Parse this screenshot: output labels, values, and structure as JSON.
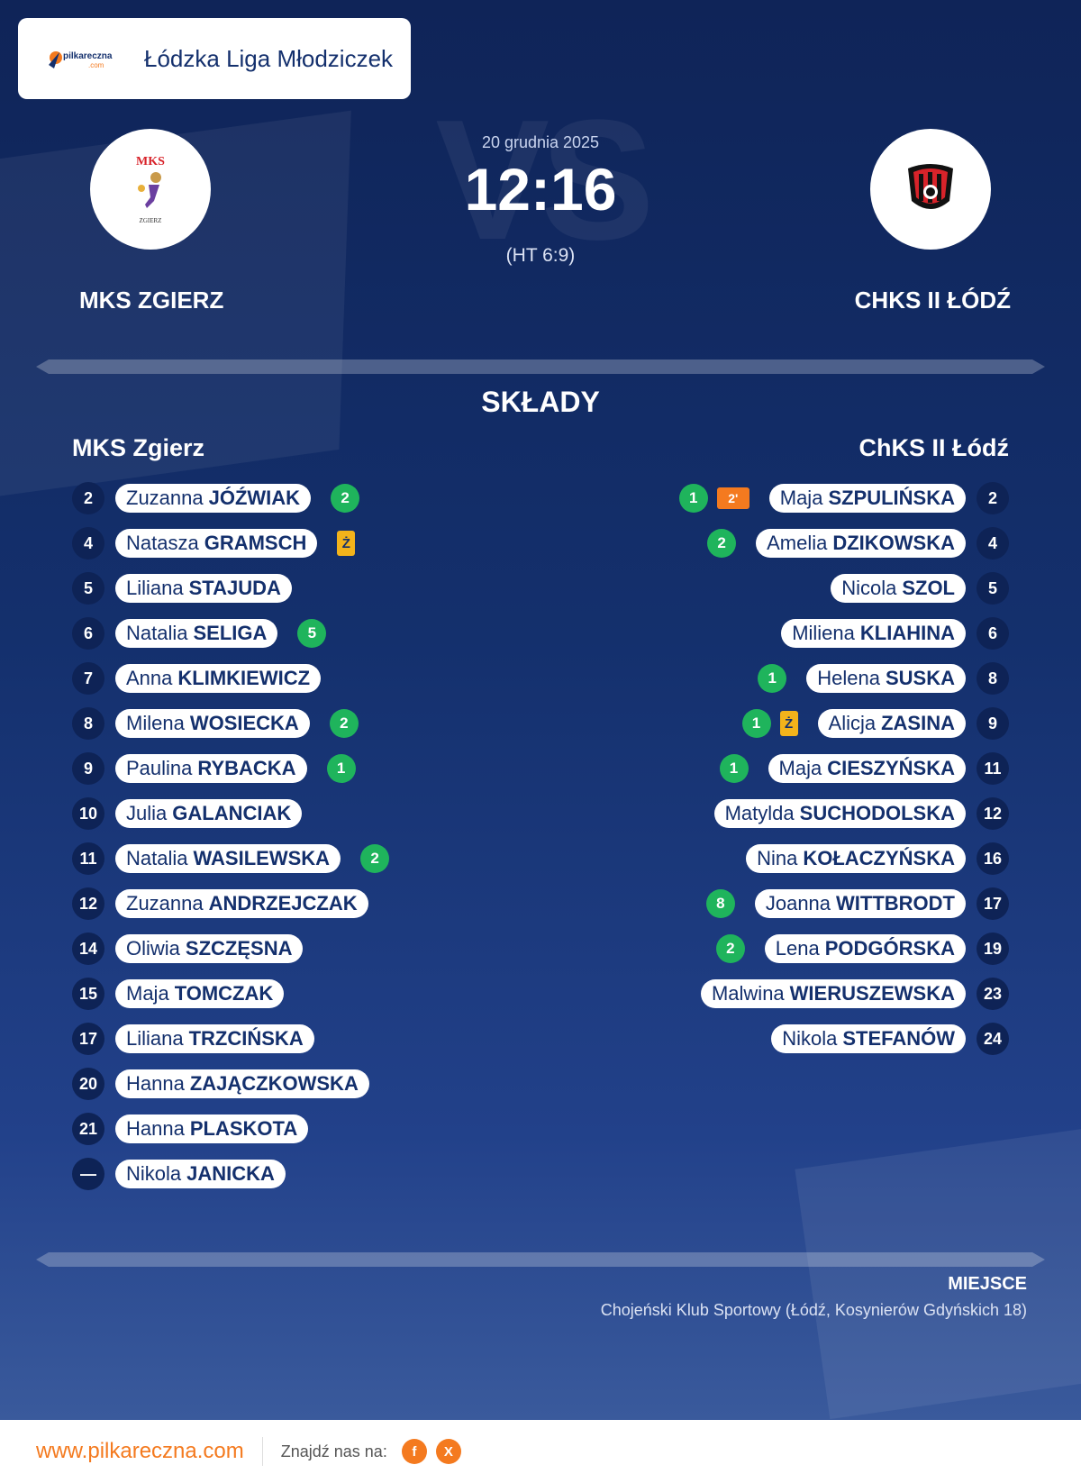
{
  "header": {
    "brand_name": "pilkareczna",
    "brand_sub": ".com",
    "league": "Łódzka Liga Młodziczek"
  },
  "match": {
    "date": "20 grudnia 2025",
    "score": "12:16",
    "halftime": "(HT 6:9)",
    "vs_watermark": "VS",
    "home": {
      "name": "MKS ZGIERZ",
      "logo_top": "MKS",
      "logo_bottom": "ZGIERZ"
    },
    "away": {
      "name": "CHKS II ŁÓDŹ"
    }
  },
  "lineups": {
    "title": "SKŁADY",
    "home_title": "MKS Zgierz",
    "away_title": "ChKS II Łódź",
    "home_players": [
      {
        "number": "2",
        "first": "Zuzanna",
        "last": "JÓŹWIAK",
        "goals": "2"
      },
      {
        "number": "4",
        "first": "Natasza",
        "last": "GRAMSCH",
        "card": "Ż"
      },
      {
        "number": "5",
        "first": "Liliana",
        "last": "STAJUDA"
      },
      {
        "number": "6",
        "first": "Natalia",
        "last": "SELIGA",
        "goals": "5"
      },
      {
        "number": "7",
        "first": "Anna",
        "last": "KLIMKIEWICZ"
      },
      {
        "number": "8",
        "first": "Milena",
        "last": "WOSIECKA",
        "goals": "2"
      },
      {
        "number": "9",
        "first": "Paulina",
        "last": "RYBACKA",
        "goals": "1"
      },
      {
        "number": "10",
        "first": "Julia",
        "last": "GALANCIAK"
      },
      {
        "number": "11",
        "first": "Natalia",
        "last": "WASILEWSKA",
        "goals": "2"
      },
      {
        "number": "12",
        "first": "Zuzanna",
        "last": "ANDRZEJCZAK"
      },
      {
        "number": "14",
        "first": "Oliwia",
        "last": "SZCZĘSNA"
      },
      {
        "number": "15",
        "first": "Maja",
        "last": "TOMCZAK"
      },
      {
        "number": "17",
        "first": "Liliana",
        "last": "TRZCIŃSKA"
      },
      {
        "number": "20",
        "first": "Hanna",
        "last": "ZAJĄCZKOWSKA"
      },
      {
        "number": "21",
        "first": "Hanna",
        "last": "PLASKOTA"
      },
      {
        "number": "—",
        "first": "Nikola",
        "last": "JANICKA"
      }
    ],
    "away_players": [
      {
        "number": "2",
        "first": "Maja",
        "last": "SZPULIŃSKA",
        "goals": "1",
        "suspension": "2'"
      },
      {
        "number": "4",
        "first": "Amelia",
        "last": "DZIKOWSKA",
        "goals": "2"
      },
      {
        "number": "5",
        "first": "Nicola",
        "last": "SZOL"
      },
      {
        "number": "6",
        "first": "Miliena",
        "last": "KLIAHINA"
      },
      {
        "number": "8",
        "first": "Helena",
        "last": "SUSKA",
        "goals": "1"
      },
      {
        "number": "9",
        "first": "Alicja",
        "last": "ZASINA",
        "goals": "1",
        "card": "Ż"
      },
      {
        "number": "11",
        "first": "Maja",
        "last": "CIESZYŃSKA",
        "goals": "1"
      },
      {
        "number": "12",
        "first": "Matylda",
        "last": "SUCHODOLSKA"
      },
      {
        "number": "16",
        "first": "Nina",
        "last": "KOŁACZYŃSKA"
      },
      {
        "number": "17",
        "first": "Joanna",
        "last": "WITTBRODT",
        "goals": "8"
      },
      {
        "number": "19",
        "first": "Lena",
        "last": "PODGÓRSKA",
        "goals": "2"
      },
      {
        "number": "23",
        "first": "Malwina",
        "last": "WIERUSZEWSKA"
      },
      {
        "number": "24",
        "first": "Nikola",
        "last": "STEFANÓW"
      }
    ]
  },
  "venue": {
    "label": "MIEJSCE",
    "text": "Chojeński Klub Sportowy (Łódź, Kosynierów Gdyńskich 18)"
  },
  "footer": {
    "site": "www.pilkareczna.com",
    "find_us": "Znajdź nas na:",
    "facebook": "f",
    "x": "X"
  },
  "colors": {
    "background": "#14306d",
    "goal": "#1fb45c",
    "yellow_card": "#f3b31b",
    "suspension": "#f47a1f",
    "accent": "#f47a1f"
  }
}
